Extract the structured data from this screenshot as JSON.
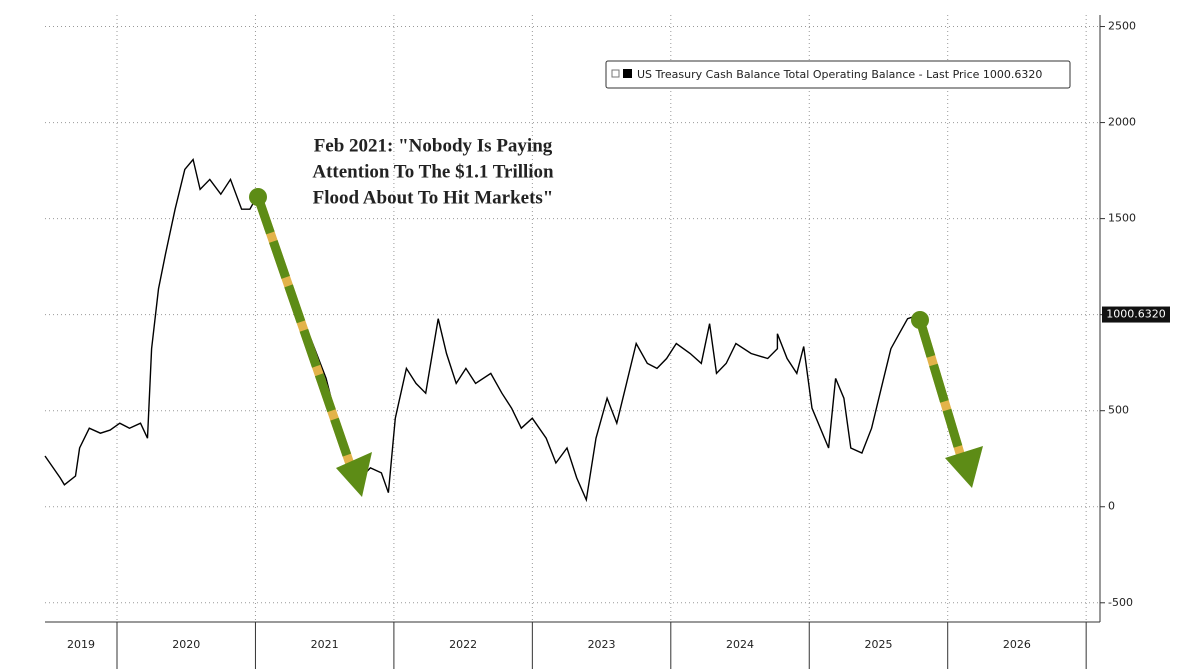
{
  "chart_data": {
    "type": "line",
    "legend": "US Treasury Cash Balance Total Operating Balance - Last Price 1000.6320",
    "last_price_label": "1000.6320",
    "annotation": [
      "Feb 2021: \"Nobody Is Paying",
      "Attention To The $1.1 Trillion",
      "Flood About To Hit Markets\""
    ],
    "xlim": [
      2019.48,
      2027.1
    ],
    "xticks": [
      2020,
      2021,
      2022,
      2023,
      2024,
      2025,
      2026,
      2027
    ],
    "x_labels": [
      "2019",
      "2020",
      "2021",
      "2022",
      "2023",
      "2024",
      "2025",
      "2026"
    ],
    "ylim": [
      -600,
      2560
    ],
    "yticks": [
      -500,
      0,
      500,
      1000,
      1500,
      2000,
      2500
    ],
    "grid": true,
    "series": [
      {
        "name": "US Treasury Cash Balance Total Operating Balance",
        "color": "#000000",
        "x": [
          2019.48,
          2019.59,
          2019.62,
          2019.7,
          2019.73,
          2019.8,
          2019.88,
          2019.95,
          2020.02,
          2020.09,
          2020.17,
          2020.22,
          2020.25,
          2020.3,
          2020.35,
          2020.42,
          2020.49,
          2020.55,
          2020.6,
          2020.67,
          2020.75,
          2020.82,
          2020.9,
          2020.96,
          2021.02,
          2021.07,
          2021.14,
          2021.22,
          2021.29,
          2021.4,
          2021.51,
          2021.62,
          2021.69,
          2021.76,
          2021.83,
          2021.91,
          2021.96,
          2022.01,
          2022.09,
          2022.16,
          2022.23,
          2022.32,
          2022.38,
          2022.45,
          2022.52,
          2022.59,
          2022.7,
          2022.78,
          2022.85,
          2022.92,
          2023.0,
          2023.1,
          2023.17,
          2023.25,
          2023.32,
          2023.39,
          2023.46,
          2023.54,
          2023.61,
          2023.68,
          2023.75,
          2023.83,
          2023.9,
          2023.97,
          2024.04,
          2024.14,
          2024.22,
          2024.28,
          2024.33,
          2024.4,
          2024.47,
          2024.58,
          2024.7,
          2024.77,
          2024.77,
          2024.84,
          2024.91,
          2024.96,
          2025.02,
          2025.14,
          2025.19,
          2025.25,
          2025.3,
          2025.38,
          2025.45,
          2025.52,
          2025.59,
          2025.65,
          2025.71,
          2025.8
        ],
        "values": [
          264,
          150,
          114,
          160,
          306,
          409,
          383,
          399,
          435,
          409,
          435,
          357,
          823,
          1134,
          1316,
          1549,
          1756,
          1808,
          1652,
          1704,
          1627,
          1704,
          1549,
          1549,
          1627,
          1445,
          1393,
          1186,
          1031,
          875,
          668,
          357,
          228,
          150,
          202,
          176,
          73,
          461,
          720,
          642,
          591,
          979,
          798,
          642,
          720,
          642,
          694,
          591,
          513,
          409,
          461,
          357,
          228,
          306,
          150,
          36,
          357,
          565,
          435,
          642,
          850,
          746,
          720,
          772,
          850,
          798,
          746,
          953,
          694,
          746,
          850,
          798,
          772,
          823,
          901,
          772,
          694,
          834,
          513,
          306,
          668,
          565,
          306,
          280,
          409,
          616,
          823,
          901,
          979,
          1000.632
        ]
      }
    ]
  }
}
